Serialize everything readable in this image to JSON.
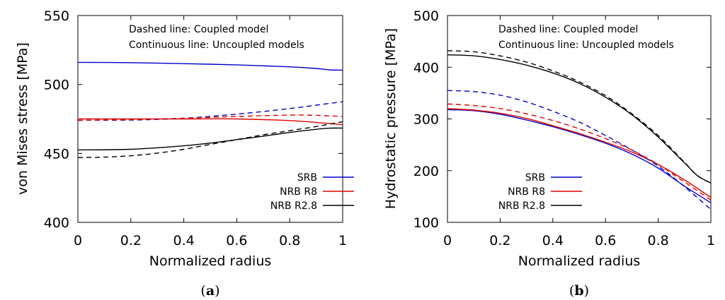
{
  "figure": {
    "panels": [
      {
        "caption_letter": "a"
      },
      {
        "caption_letter": "b"
      }
    ]
  },
  "chart_data": [
    {
      "type": "line",
      "xlabel": "Normalized radius",
      "ylabel": "von Mises stress [MPa]",
      "xlim": [
        0,
        1
      ],
      "ylim": [
        400,
        550
      ],
      "xticks": [
        "0",
        "0.2",
        "0.4",
        "0.6",
        "0.8",
        "1"
      ],
      "yticks": [
        "400",
        "450",
        "500",
        "550"
      ],
      "grid": false,
      "legend_position": "bottom-right",
      "annotations": [
        "Dashed line: Coupled model",
        "Continuous line: Uncoupled models"
      ],
      "series": [
        {
          "name": "SRB",
          "color": "#0000cc",
          "dash": "solid",
          "x": [
            0,
            0.2,
            0.4,
            0.6,
            0.8,
            0.9,
            0.95,
            1
          ],
          "y": [
            516,
            515.8,
            515.1,
            514.2,
            512.8,
            511.6,
            510.6,
            510.4
          ]
        },
        {
          "name": "NRB R8",
          "color": "#e00000",
          "dash": "solid",
          "x": [
            0,
            0.2,
            0.4,
            0.6,
            0.8,
            0.9,
            1
          ],
          "y": [
            475,
            475,
            475,
            475,
            473.8,
            472.5,
            470.8
          ]
        },
        {
          "name": "NRB R2.8",
          "color": "#000000",
          "dash": "solid",
          "x": [
            0,
            0.2,
            0.4,
            0.5,
            0.6,
            0.7,
            0.8,
            0.9,
            0.95,
            1
          ],
          "y": [
            452.5,
            453,
            455.5,
            457.5,
            460,
            462.5,
            465.2,
            467.5,
            468.3,
            468.4
          ]
        },
        {
          "name": "",
          "color": "#0000cc",
          "dash": "dashed",
          "x": [
            0,
            0.2,
            0.4,
            0.6,
            0.8,
            0.9,
            1
          ],
          "y": [
            474,
            474.2,
            475.5,
            478.5,
            482.5,
            485,
            487.5
          ]
        },
        {
          "name": "",
          "color": "#e00000",
          "dash": "dashed",
          "x": [
            0,
            0.2,
            0.4,
            0.6,
            0.8,
            0.9,
            1
          ],
          "y": [
            474,
            474.5,
            475.5,
            476.8,
            477.8,
            477.6,
            476.8
          ]
        },
        {
          "name": "",
          "color": "#000000",
          "dash": "dashed",
          "x": [
            0,
            0.1,
            0.2,
            0.3,
            0.4,
            0.5,
            0.6,
            0.7,
            0.8,
            0.9,
            1
          ],
          "y": [
            447,
            447.3,
            448.3,
            450.2,
            453,
            456.5,
            460,
            463.5,
            466.5,
            469.5,
            473
          ]
        }
      ]
    },
    {
      "type": "line",
      "xlabel": "Normalized radius",
      "ylabel": "Hydrostatic pressure [MPa]",
      "xlim": [
        0,
        1
      ],
      "ylim": [
        100,
        500
      ],
      "xticks": [
        "0",
        "0.2",
        "0.4",
        "0.6",
        "0.8",
        "1"
      ],
      "yticks": [
        "100",
        "200",
        "300",
        "400",
        "500"
      ],
      "grid": false,
      "legend_position": "bottom-right",
      "annotations": [
        "Dashed line: Coupled model",
        "Continuous line: Uncoupled models"
      ],
      "series": [
        {
          "name": "SRB",
          "color": "#0000cc",
          "dash": "solid",
          "x": [
            0,
            0.1,
            0.2,
            0.3,
            0.4,
            0.5,
            0.6,
            0.7,
            0.8,
            0.9,
            1
          ],
          "y": [
            318,
            316,
            309,
            298,
            285,
            270,
            253,
            232,
            205,
            170,
            138
          ]
        },
        {
          "name": "NRB R8",
          "color": "#e00000",
          "dash": "solid",
          "x": [
            0,
            0.1,
            0.2,
            0.3,
            0.4,
            0.5,
            0.6,
            0.7,
            0.8,
            0.9,
            1
          ],
          "y": [
            320,
            317,
            311,
            301,
            287,
            272,
            255,
            236,
            212,
            182,
            148
          ]
        },
        {
          "name": "NRB R2.8",
          "color": "#000000",
          "dash": "solid",
          "x": [
            0,
            0.1,
            0.2,
            0.3,
            0.4,
            0.5,
            0.6,
            0.7,
            0.8,
            0.9,
            0.95,
            1
          ],
          "y": [
            424,
            422,
            415,
            404,
            389,
            369,
            342,
            308,
            265,
            215,
            190,
            176
          ]
        },
        {
          "name": "",
          "color": "#0000cc",
          "dash": "dashed",
          "x": [
            0,
            0.1,
            0.2,
            0.3,
            0.4,
            0.5,
            0.6,
            0.7,
            0.8,
            0.9,
            1
          ],
          "y": [
            355,
            353,
            346,
            333,
            315,
            294,
            268,
            240,
            209,
            169,
            125
          ]
        },
        {
          "name": "",
          "color": "#e00000",
          "dash": "dashed",
          "x": [
            0,
            0.1,
            0.2,
            0.3,
            0.4,
            0.5,
            0.6,
            0.7,
            0.8,
            0.9,
            1
          ],
          "y": [
            329,
            326,
            320,
            310,
            297,
            281,
            262,
            240,
            212,
            178,
            143
          ]
        },
        {
          "name": "",
          "color": "#000000",
          "dash": "dashed",
          "x": [
            0,
            0.1,
            0.2,
            0.3,
            0.4,
            0.5,
            0.6,
            0.7,
            0.8,
            0.9,
            0.95,
            1
          ],
          "y": [
            432,
            430,
            422,
            410,
            393,
            372,
            345,
            310,
            268,
            216,
            190,
            176
          ]
        }
      ]
    }
  ]
}
